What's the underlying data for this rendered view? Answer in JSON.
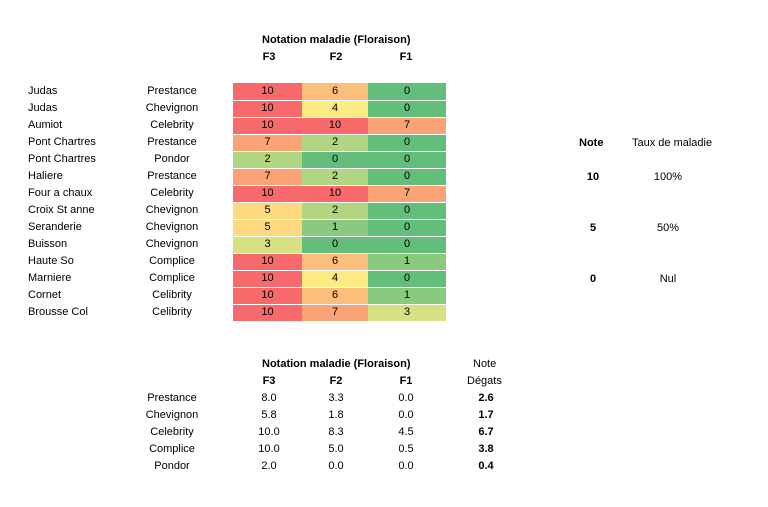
{
  "top_table": {
    "title": "Notation maladie (Floraison)",
    "columns": [
      "F3",
      "F2",
      "F1"
    ],
    "rows": [
      {
        "site": "Judas",
        "variety": "Prestance",
        "values": [
          10,
          6,
          0
        ],
        "colors": [
          "#f8696b",
          "#fcbf7b",
          "#63be7b"
        ]
      },
      {
        "site": "Judas",
        "variety": "Chevignon",
        "values": [
          10,
          4,
          0
        ],
        "colors": [
          "#f8696b",
          "#ffeb84",
          "#63be7b"
        ]
      },
      {
        "site": "Aumiot",
        "variety": "Celebrity",
        "values": [
          10,
          10,
          7
        ],
        "colors": [
          "#f8696b",
          "#f8696b",
          "#fba276"
        ]
      },
      {
        "site": "Pont Chartres",
        "variety": "Prestance",
        "values": [
          7,
          2,
          0
        ],
        "colors": [
          "#fba276",
          "#b1d580",
          "#63be7b"
        ]
      },
      {
        "site": "Pont Chartres",
        "variety": "Pondor",
        "values": [
          2,
          0,
          0
        ],
        "colors": [
          "#b1d580",
          "#63be7b",
          "#63be7b"
        ]
      },
      {
        "site": "Haliere",
        "variety": "Prestance",
        "values": [
          7,
          2,
          0
        ],
        "colors": [
          "#fba276",
          "#b1d580",
          "#63be7b"
        ]
      },
      {
        "site": "Four a chaux",
        "variety": "Celebrity",
        "values": [
          10,
          10,
          7
        ],
        "colors": [
          "#f8696b",
          "#f8696b",
          "#fba276"
        ]
      },
      {
        "site": "Croix St anne",
        "variety": "Chevignon",
        "values": [
          5,
          2,
          0
        ],
        "colors": [
          "#fed980",
          "#b1d580",
          "#63be7b"
        ]
      },
      {
        "site": "Seranderie",
        "variety": "Chevignon",
        "values": [
          5,
          1,
          0
        ],
        "colors": [
          "#fed980",
          "#8aca7e",
          "#63be7b"
        ]
      },
      {
        "site": "Buisson",
        "variety": "Chevignon",
        "values": [
          3,
          0,
          0
        ],
        "colors": [
          "#d8e082",
          "#63be7b",
          "#63be7b"
        ]
      },
      {
        "site": "Haute So",
        "variety": "Complice",
        "values": [
          10,
          6,
          1
        ],
        "colors": [
          "#f8696b",
          "#fcbf7b",
          "#8aca7e"
        ]
      },
      {
        "site": "Marniere",
        "variety": "Complice",
        "values": [
          10,
          4,
          0
        ],
        "colors": [
          "#f8696b",
          "#ffeb84",
          "#63be7b"
        ]
      },
      {
        "site": "Cornet",
        "variety": "Celibrity",
        "values": [
          10,
          6,
          1
        ],
        "colors": [
          "#f8696b",
          "#fcbf7b",
          "#8aca7e"
        ]
      },
      {
        "site": "Brousse Col",
        "variety": "Celibrity",
        "values": [
          10,
          7,
          3
        ],
        "colors": [
          "#f8696b",
          "#fba276",
          "#d8e082"
        ]
      }
    ]
  },
  "legend": {
    "header_note": "Note",
    "header_taux": "Taux de maladie",
    "rows": [
      {
        "note": "10",
        "taux": "100%"
      },
      {
        "note": "5",
        "taux": "50%"
      },
      {
        "note": "0",
        "taux": "Nul"
      }
    ]
  },
  "summary_table": {
    "title": "Notation maladie (Floraison)",
    "columns": [
      "F3",
      "F2",
      "F1"
    ],
    "note_header_line1": "Note",
    "note_header_line2": "Dégats",
    "rows": [
      {
        "variety": "Prestance",
        "f3": "8.0",
        "f2": "3.3",
        "f1": "0.0",
        "note": "2.6"
      },
      {
        "variety": "Chevignon",
        "f3": "5.8",
        "f2": "1.8",
        "f1": "0.0",
        "note": "1.7"
      },
      {
        "variety": "Celebrity",
        "f3": "10.0",
        "f2": "8.3",
        "f1": "4.5",
        "note": "6.7"
      },
      {
        "variety": "Complice",
        "f3": "10.0",
        "f2": "5.0",
        "f1": "0.5",
        "note": "3.8"
      },
      {
        "variety": "Pondor",
        "f3": "2.0",
        "f2": "0.0",
        "f1": "0.0",
        "note": "0.4"
      }
    ]
  }
}
